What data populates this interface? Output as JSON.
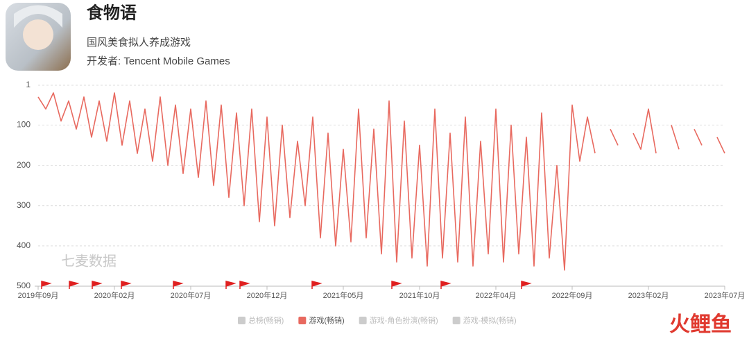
{
  "header": {
    "title": "食物语",
    "subtitle": "国风美食拟人养成游戏",
    "developer": "开发者: Tencent Mobile Games"
  },
  "watermark": "七麦数据",
  "logo": "火鲤鱼",
  "chart_data": {
    "type": "line",
    "categories": [
      "2019年09月",
      null,
      null,
      null,
      null,
      null,
      null,
      null,
      null,
      null,
      "2020年02月",
      null,
      null,
      null,
      null,
      null,
      null,
      null,
      null,
      null,
      "2020年07月",
      null,
      null,
      null,
      null,
      null,
      null,
      null,
      null,
      null,
      "2020年12月",
      null,
      null,
      null,
      null,
      null,
      null,
      null,
      null,
      null,
      "2021年05月",
      null,
      null,
      null,
      null,
      null,
      null,
      null,
      null,
      null,
      "2021年10月",
      null,
      null,
      null,
      null,
      null,
      null,
      null,
      null,
      null,
      "2022年04月",
      null,
      null,
      null,
      null,
      null,
      null,
      null,
      null,
      null,
      "2022年09月",
      null,
      null,
      null,
      null,
      null,
      null,
      null,
      null,
      null,
      "2023年02月",
      null,
      null,
      null,
      null,
      null,
      null,
      null,
      null,
      null,
      "2023年07月"
    ],
    "series": [
      {
        "name": "游戏(畅销)",
        "color": "#e8695f",
        "values": [
          30,
          60,
          20,
          90,
          40,
          110,
          30,
          130,
          40,
          140,
          20,
          150,
          40,
          170,
          60,
          190,
          30,
          200,
          50,
          220,
          60,
          230,
          40,
          250,
          50,
          280,
          70,
          300,
          60,
          340,
          80,
          350,
          100,
          330,
          140,
          300,
          80,
          380,
          120,
          400,
          160,
          390,
          60,
          380,
          110,
          420,
          40,
          440,
          90,
          430,
          150,
          450,
          60,
          430,
          120,
          440,
          80,
          450,
          140,
          420,
          60,
          440,
          100,
          420,
          130,
          450,
          70,
          430,
          200,
          460,
          50,
          190,
          80,
          170,
          null,
          110,
          150,
          null,
          120,
          160,
          60,
          170,
          null,
          100,
          160,
          null,
          110,
          150,
          null,
          130,
          170
        ]
      }
    ],
    "legend": [
      {
        "name": "总榜(畅销)",
        "color": "#cccccc"
      },
      {
        "name": "游戏(畅销)",
        "color": "#e8695f"
      },
      {
        "name": "游戏-角色扮演(畅销)",
        "color": "#cccccc"
      },
      {
        "name": "游戏-模拟(畅销)",
        "color": "#cccccc"
      }
    ],
    "ylim": [
      1,
      500
    ],
    "yticks": [
      1,
      100,
      200,
      300,
      400,
      500
    ],
    "y_inverted": true,
    "grid": true
  }
}
